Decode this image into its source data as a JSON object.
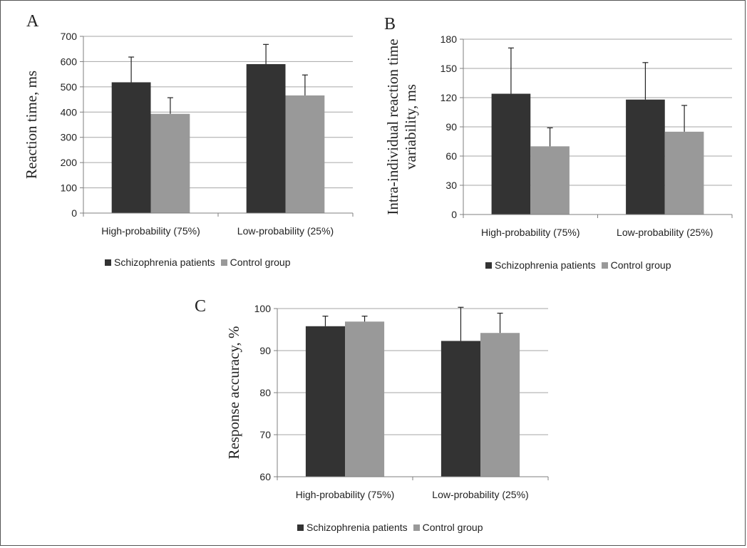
{
  "colors": {
    "patients": "#333333",
    "control": "#999999",
    "grid": "#a6a6a6",
    "axis": "#7f7f7f"
  },
  "chart_data": [
    {
      "panel": "A",
      "type": "bar",
      "ylabel": [
        "Reaction time, ms"
      ],
      "categories": [
        "High-probability (75%)",
        "Low-probability (25%)"
      ],
      "ylim": [
        0,
        700
      ],
      "yticks": [
        0,
        100,
        200,
        300,
        400,
        500,
        600,
        700
      ],
      "grid": true,
      "legend_position": "bottom",
      "series": [
        {
          "name": "Schizophrenia patients",
          "values": [
            518,
            590
          ],
          "errors": [
            100,
            78
          ]
        },
        {
          "name": "Control group",
          "values": [
            393,
            466
          ],
          "errors": [
            64,
            81
          ]
        }
      ]
    },
    {
      "panel": "B",
      "type": "bar",
      "ylabel": [
        "Intra-individual reaction time",
        "variability, ms"
      ],
      "categories": [
        "High-probability (75%)",
        "Low-probability (25%)"
      ],
      "ylim": [
        0,
        180
      ],
      "yticks": [
        0,
        30,
        60,
        90,
        120,
        150,
        180
      ],
      "grid": true,
      "legend_position": "bottom",
      "series": [
        {
          "name": "Schizophrenia patients",
          "values": [
            124,
            118
          ],
          "errors": [
            47,
            38
          ]
        },
        {
          "name": "Control group",
          "values": [
            70,
            85
          ],
          "errors": [
            19,
            27
          ]
        }
      ]
    },
    {
      "panel": "C",
      "type": "bar",
      "ylabel": [
        "Response accuracy, %"
      ],
      "categories": [
        "High-probability (75%)",
        "Low-probability (25%)"
      ],
      "ylim": [
        60,
        100
      ],
      "yticks": [
        60,
        70,
        80,
        90,
        100
      ],
      "grid": true,
      "legend_position": "bottom",
      "series": [
        {
          "name": "Schizophrenia patients",
          "values": [
            95.8,
            92.3
          ],
          "errors": [
            2.4,
            8.0
          ]
        },
        {
          "name": "Control group",
          "values": [
            96.9,
            94.2
          ],
          "errors": [
            1.3,
            4.7
          ]
        }
      ]
    }
  ]
}
